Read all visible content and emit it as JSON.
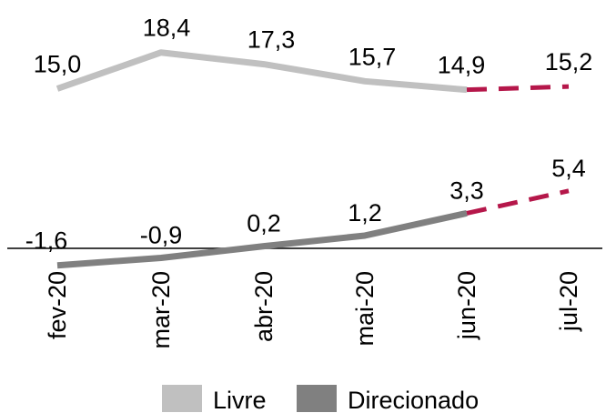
{
  "chart_data": {
    "type": "line",
    "title": "",
    "xlabel": "",
    "ylabel": "",
    "categories": [
      "fev-20",
      "mar-20",
      "abr-20",
      "mai-20",
      "jun-20",
      "jul-20"
    ],
    "series": [
      {
        "name": "Livre",
        "color": "#c0c0c0",
        "values": [
          15.0,
          18.4,
          17.3,
          15.7,
          14.9,
          15.2
        ],
        "labels": [
          "15,0",
          "18,4",
          "17,3",
          "15,7",
          "14,9",
          "15,2"
        ],
        "projected_from_index": 4
      },
      {
        "name": "Direcionado",
        "color": "#808080",
        "values": [
          -1.6,
          -0.9,
          0.2,
          1.2,
          3.3,
          5.4
        ],
        "labels": [
          "-1,6",
          "-0,9",
          "0,2",
          "1,2",
          "3,3",
          "5,4"
        ],
        "projected_from_index": 4
      }
    ],
    "projection_color": "#b5174a",
    "axis_line_at": 0,
    "grid": false,
    "legend_position": "bottom"
  }
}
